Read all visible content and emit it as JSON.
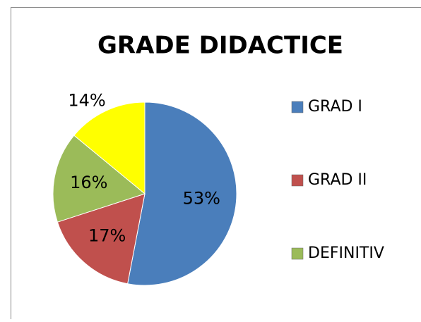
{
  "chart_data": {
    "type": "pie",
    "title": "GRADE DIDACTICE",
    "categories": [
      "GRAD I",
      "GRAD II",
      "DEFINITIV",
      null
    ],
    "values": [
      53,
      17,
      16,
      14
    ],
    "value_labels": [
      "53%",
      "17%",
      "16%",
      "14%"
    ],
    "colors": [
      "#4a7ebb",
      "#c0504d",
      "#9bbb59",
      "#ffff00"
    ],
    "legend": "right"
  }
}
